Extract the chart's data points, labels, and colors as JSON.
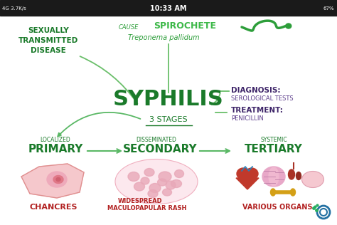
{
  "bg_color": "#faf9f5",
  "status_bar_color": "#1a1a1a",
  "status_bar_text": "10:33 AM",
  "title": "SYPHILIS",
  "subtitle": "3 STAGES",
  "cause_label": "CAUSE",
  "cause_type": "SPIROCHETE",
  "cause_organism": "Treponema pallidum",
  "std_line1": "SEXUALLY",
  "std_line2": "TRANSMITTED",
  "std_line3": "DISEASE",
  "diagnosis_label": "DIAGNOSIS:",
  "diagnosis_value": "SEROLOGICAL TESTS",
  "treatment_label": "TREATMENT:",
  "treatment_value": "PENICILLIN",
  "stage1_modifier": "LOCALIZED",
  "stage1_name": "PRIMARY",
  "stage1_image_label": "CHANCRES",
  "stage2_modifier": "DISSEMINATED",
  "stage2_name": "SECONDARY",
  "stage2_wide": "WIDESPREAD",
  "stage2_image_label": "MACULOPAPULAR RASH",
  "stage3_modifier": "SYSTEMIC",
  "stage3_name": "TERTIARY",
  "stage3_image_label": "VARIOUS ORGANS",
  "green_dark": "#1a7a2a",
  "green_mid": "#2d9e3a",
  "green_bright": "#3cb848",
  "red_label": "#b22222",
  "purple_dark": "#3d2468",
  "purple_sub": "#5a3a8a",
  "pink_light": "#f8d0d8",
  "pink_medium": "#f0a8b8",
  "pink_dark": "#e07890",
  "arrow_green": "#5ab865",
  "line_green": "#6abf6a"
}
